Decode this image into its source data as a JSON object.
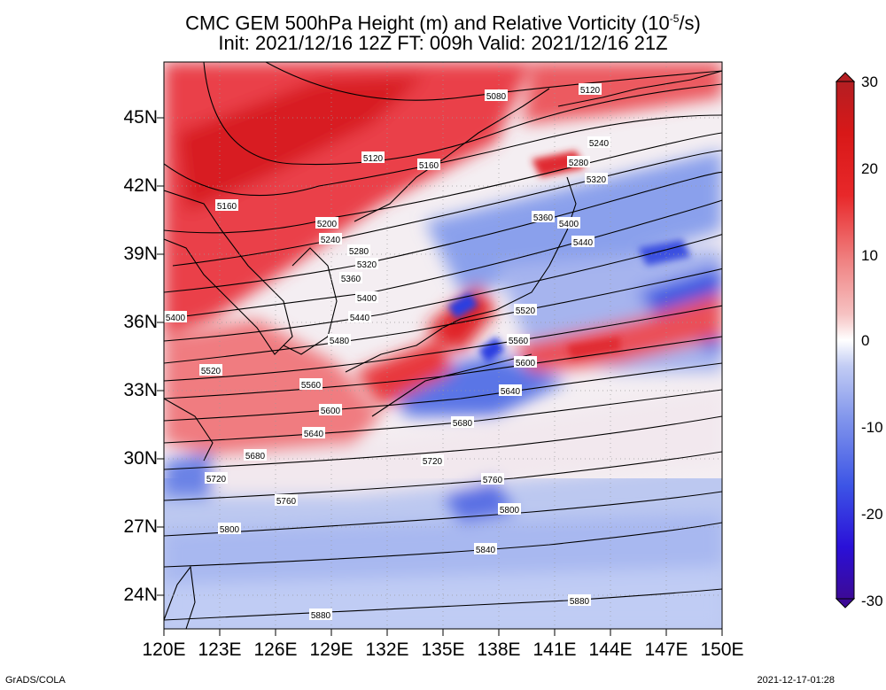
{
  "title": {
    "line1_main": "CMC GEM 500hPa Height (m) and Relative Vorticity (10",
    "line1_exp": "-5",
    "line1_tail": "/s)",
    "line2": "Init: 2021/12/16 12Z  FT: 009h  Valid: 2021/12/16 21Z"
  },
  "lat_ticks": [
    "45N",
    "42N",
    "39N",
    "36N",
    "33N",
    "30N",
    "27N",
    "24N"
  ],
  "lon_ticks": [
    "120E",
    "123E",
    "126E",
    "129E",
    "132E",
    "135E",
    "138E",
    "141E",
    "144E",
    "147E",
    "150E"
  ],
  "colorbar": {
    "labels": [
      "30",
      "20",
      "10",
      "0",
      "-10",
      "-20",
      "-30"
    ],
    "colors": [
      "#3c0a96",
      "#2a10d8",
      "#3d55e6",
      "#8296ec",
      "#c2ccf4",
      "#ffffff",
      "#f6c2c2",
      "#f08484",
      "#e8282a",
      "#d81818",
      "#b41e22"
    ]
  },
  "contours": [
    {
      "label": "5080"
    },
    {
      "label": "5120"
    },
    {
      "label": "5120"
    },
    {
      "label": "5160"
    },
    {
      "label": "5160"
    },
    {
      "label": "5200"
    },
    {
      "label": "5240"
    },
    {
      "label": "5240"
    },
    {
      "label": "5280"
    },
    {
      "label": "5280"
    },
    {
      "label": "5320"
    },
    {
      "label": "5320"
    },
    {
      "label": "5360"
    },
    {
      "label": "5360"
    },
    {
      "label": "5400"
    },
    {
      "label": "5400"
    },
    {
      "label": "5400"
    },
    {
      "label": "5440"
    },
    {
      "label": "5440"
    },
    {
      "label": "5480"
    },
    {
      "label": "5520"
    },
    {
      "label": "5520"
    },
    {
      "label": "5560"
    },
    {
      "label": "5560"
    },
    {
      "label": "5600"
    },
    {
      "label": "5600"
    },
    {
      "label": "5640"
    },
    {
      "label": "5640"
    },
    {
      "label": "5680"
    },
    {
      "label": "5680"
    },
    {
      "label": "5720"
    },
    {
      "label": "5720"
    },
    {
      "label": "5760"
    },
    {
      "label": "5760"
    },
    {
      "label": "5800"
    },
    {
      "label": "5800"
    },
    {
      "label": "5840"
    },
    {
      "label": "5880"
    },
    {
      "label": "5880"
    }
  ],
  "footer": {
    "left": "GrADS/COLA",
    "right": "2021-12-17-01:28"
  },
  "styles": {
    "positive_color": "#e8282a",
    "negative_color": "#2a3ce0",
    "contour_color": "#000000"
  }
}
